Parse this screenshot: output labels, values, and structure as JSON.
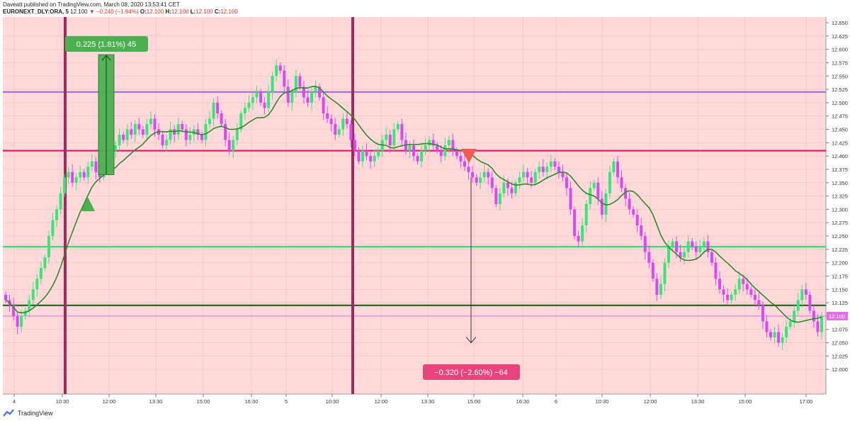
{
  "header": {
    "line1": "Daveatt published on TradingView.com, March 08, 2020 13:53:41 CET",
    "symbol": "EURONEXT_DLY:ORA, 5",
    "price": "12.100",
    "change": "−0.240 (−1.94%)",
    "o_label": "O:",
    "o_val": "12.100",
    "h_label": "H:",
    "h_val": "12.100",
    "l_label": "L:",
    "l_val": "12.100",
    "c_label": "C:",
    "c_val": "12.100"
  },
  "footer": {
    "brand": "TradingView"
  },
  "chart_data": {
    "type": "candlestick",
    "symbol": "EURONEXT_DLY:ORA",
    "interval": "5",
    "y_axis": {
      "min": 11.975,
      "max": 12.65,
      "ticks": [
        "12.650",
        "12.625",
        "12.600",
        "12.575",
        "12.550",
        "12.525",
        "12.500",
        "12.475",
        "12.450",
        "12.425",
        "12.400",
        "12.375",
        "12.350",
        "12.325",
        "12.300",
        "12.275",
        "12.250",
        "12.225",
        "12.200",
        "12.175",
        "12.150",
        "12.125",
        "12.100",
        "12.075",
        "12.050",
        "12.025",
        "12.000"
      ]
    },
    "x_axis": {
      "ticks": [
        "4",
        "10:30",
        "12:00",
        "13:30",
        "15:00",
        "16:30",
        "5",
        "10:30",
        "12:00",
        "13:30",
        "15:00",
        "16:30",
        "6",
        "10:30",
        "12:00",
        "13:30",
        "15:00",
        "17:00"
      ]
    },
    "price_label": "12.100",
    "horizontal_levels": [
      {
        "price": 12.52,
        "color": "#9c6ce0"
      },
      {
        "price": 12.41,
        "color": "#e0206a"
      },
      {
        "price": 12.23,
        "color": "#33dd77"
      },
      {
        "price": 12.12,
        "color": "#1e6e1e"
      },
      {
        "price": 12.1,
        "color": "#e070e0"
      }
    ],
    "vertical_markers": [
      "10:30",
      "10:30"
    ],
    "annotations": [
      {
        "text": "0.225 (1.81%) 45",
        "color": "#4caf50"
      },
      {
        "text": "−0.320 (−2.60%) −64",
        "color": "#e8437a"
      }
    ],
    "colors": {
      "bull": "#3be37a",
      "bear": "#d84af0",
      "ma": "#2a8a2a",
      "background": "#ffd9da"
    },
    "close_series": [
      12.13,
      12.12,
      12.1,
      12.08,
      12.1,
      12.11,
      12.13,
      12.15,
      12.17,
      12.19,
      12.21,
      12.25,
      12.28,
      12.3,
      12.33,
      12.36,
      12.37,
      12.35,
      12.36,
      12.37,
      12.36,
      12.38,
      12.39,
      12.37,
      12.36,
      12.38,
      12.39,
      12.41,
      12.42,
      12.44,
      12.43,
      12.45,
      12.44,
      12.46,
      12.45,
      12.44,
      12.46,
      12.47,
      12.45,
      12.44,
      12.42,
      12.43,
      12.45,
      12.44,
      12.46,
      12.45,
      12.43,
      12.44,
      12.45,
      12.44,
      12.43,
      12.46,
      12.47,
      12.5,
      12.48,
      12.46,
      12.43,
      12.41,
      12.43,
      12.45,
      12.48,
      12.49,
      12.5,
      12.51,
      12.52,
      12.5,
      12.49,
      12.52,
      12.55,
      12.57,
      12.56,
      12.53,
      12.5,
      12.52,
      12.55,
      12.53,
      12.51,
      12.5,
      12.52,
      12.53,
      12.51,
      12.48,
      12.47,
      12.46,
      12.44,
      12.45,
      12.47,
      12.46,
      12.43,
      12.41,
      12.39,
      12.41,
      12.4,
      12.39,
      12.4,
      12.41,
      12.43,
      12.44,
      12.42,
      12.45,
      12.46,
      12.43,
      12.41,
      12.42,
      12.4,
      12.39,
      12.41,
      12.42,
      12.43,
      12.42,
      12.41,
      12.4,
      12.42,
      12.43,
      12.41,
      12.4,
      12.39,
      12.38,
      12.37,
      12.36,
      12.35,
      12.36,
      12.37,
      12.36,
      12.34,
      12.31,
      12.33,
      12.35,
      12.34,
      12.33,
      12.35,
      12.36,
      12.37,
      12.36,
      12.35,
      12.37,
      12.38,
      12.37,
      12.38,
      12.39,
      12.38,
      12.37,
      12.36,
      12.34,
      12.3,
      12.25,
      12.24,
      12.27,
      12.31,
      12.34,
      12.35,
      12.32,
      12.29,
      12.33,
      12.37,
      12.39,
      12.36,
      12.34,
      12.32,
      12.3,
      12.29,
      12.27,
      12.25,
      12.22,
      12.2,
      12.17,
      12.14,
      12.16,
      12.2,
      12.23,
      12.24,
      12.22,
      12.21,
      12.22,
      12.24,
      12.23,
      12.22,
      12.23,
      12.24,
      12.22,
      12.2,
      12.17,
      12.15,
      12.14,
      12.13,
      12.14,
      12.15,
      12.17,
      12.16,
      12.15,
      12.14,
      12.13,
      12.12,
      12.09,
      12.07,
      12.06,
      12.07,
      12.05,
      12.06,
      12.08,
      12.09,
      12.11,
      12.13,
      12.15,
      12.14,
      12.11,
      12.09,
      12.07,
      12.1
    ]
  }
}
